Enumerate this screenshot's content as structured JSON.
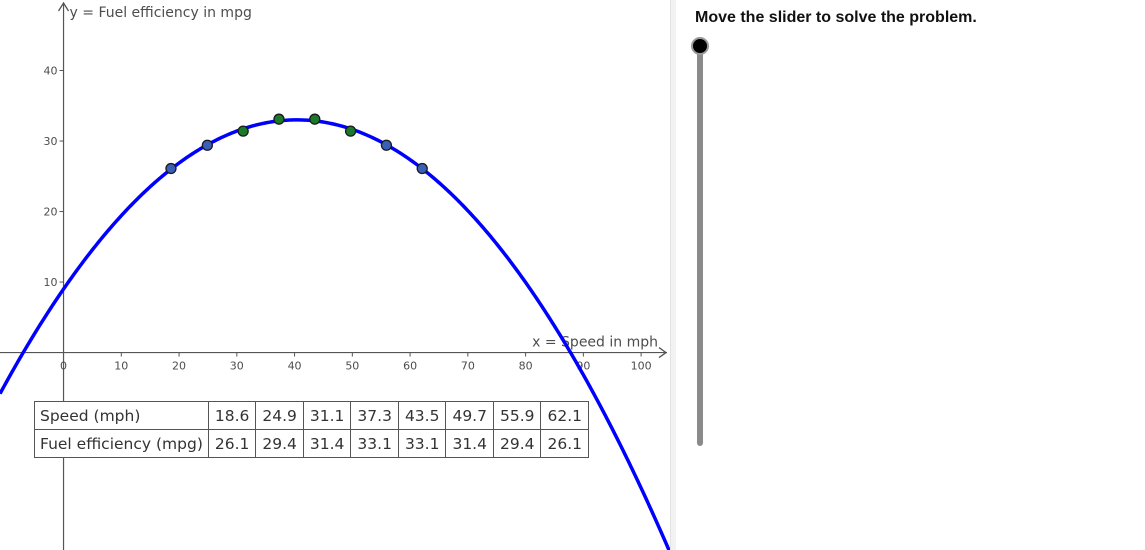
{
  "graph": {
    "y_axis_label": "y = Fuel efficiency in mpg",
    "x_axis_label": "x = Speed in mph",
    "x_ticks": [
      "0",
      "10",
      "20",
      "30",
      "40",
      "50",
      "60",
      "70",
      "80",
      "90",
      "100"
    ],
    "y_ticks": [
      "10",
      "20",
      "30",
      "40"
    ],
    "curve_color": "#0000ff",
    "point_colors": [
      "#3a5fb8",
      "#1a7a2a"
    ]
  },
  "table": {
    "rows": [
      {
        "header": "Speed (mph)",
        "cells": [
          "18.6",
          "24.9",
          "31.1",
          "37.3",
          "43.5",
          "49.7",
          "55.9",
          "62.1"
        ]
      },
      {
        "header": "Fuel efficiency (mpg)",
        "cells": [
          "26.1",
          "29.4",
          "31.4",
          "33.1",
          "33.1",
          "31.4",
          "29.4",
          "26.1"
        ]
      }
    ]
  },
  "side_panel": {
    "prompt": "Move the slider to solve the problem."
  },
  "chart_data": {
    "type": "scatter",
    "xlabel": "x = Speed in mph",
    "ylabel": "y = Fuel efficiency in mpg",
    "series": [
      {
        "x": [
          18.6,
          24.9,
          31.1,
          37.3,
          43.5,
          49.7,
          55.9,
          62.1
        ],
        "y": [
          26.1,
          29.4,
          31.4,
          33.1,
          33.1,
          31.4,
          29.4,
          26.1
        ]
      }
    ],
    "curve": {
      "type": "parabola",
      "vertex": [
        40.4,
        33.0
      ],
      "a": -0.0147
    },
    "xlim": [
      -11,
      105
    ],
    "ylim": [
      -28,
      50
    ],
    "grid": false
  },
  "slider": {
    "value": 0
  }
}
